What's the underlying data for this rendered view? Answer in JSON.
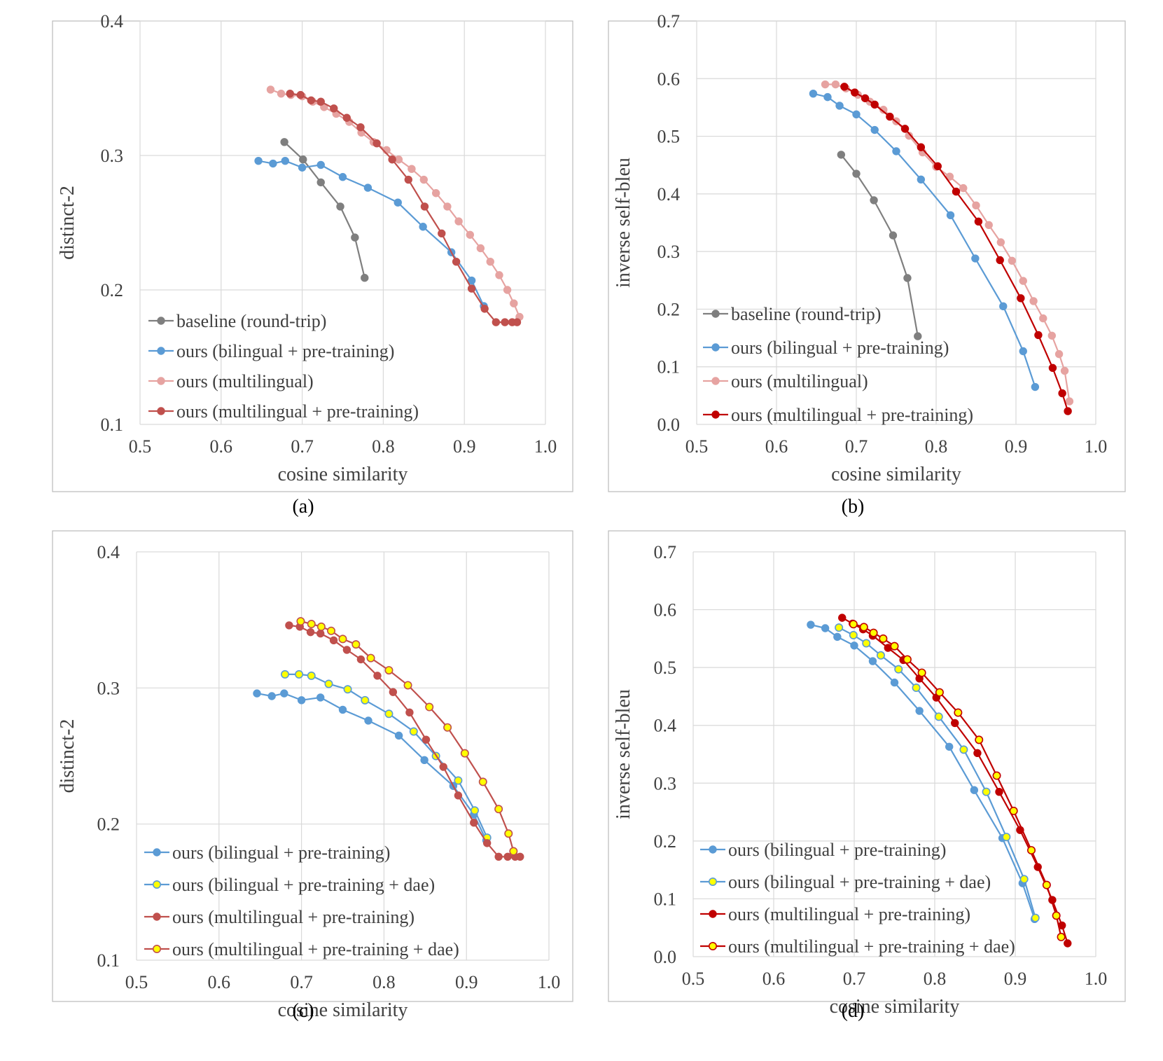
{
  "colors": {
    "baseline": "#7f7f7f",
    "bilingual": "#5b9bd5",
    "multilingual_light": "#e6a3a1",
    "multilingual_pt": "#c0504d",
    "multilingual_pt_dark": "#c00000",
    "marker_yellow": "#ffff00"
  },
  "chart_data": [
    {
      "id": "a",
      "type": "line",
      "caption": "(a)",
      "xlabel": "cosine similarity",
      "ylabel": "distinct-2",
      "xlim": [
        0.5,
        1.0
      ],
      "ylim": [
        0.1,
        0.4
      ],
      "xticks": [
        "0.5",
        "0.6",
        "0.7",
        "0.8",
        "0.9",
        "1.0"
      ],
      "yticks": [
        "0.1",
        "0.2",
        "0.3",
        "0.4"
      ],
      "series": [
        {
          "name": "baseline (round-trip)",
          "color": "#7f7f7f",
          "marker_fill": "#7f7f7f",
          "x": [
            0.678,
            0.701,
            0.723,
            0.747,
            0.765,
            0.777
          ],
          "y": [
            0.31,
            0.297,
            0.28,
            0.262,
            0.239,
            0.209
          ]
        },
        {
          "name": "ours (bilingual + pre-training)",
          "color": "#5b9bd5",
          "marker_fill": "#5b9bd5",
          "x": [
            0.646,
            0.664,
            0.679,
            0.7,
            0.723,
            0.75,
            0.781,
            0.818,
            0.849,
            0.884,
            0.909,
            0.924
          ],
          "y": [
            0.296,
            0.294,
            0.296,
            0.291,
            0.293,
            0.284,
            0.276,
            0.265,
            0.247,
            0.228,
            0.207,
            0.188
          ]
        },
        {
          "name": "ours (multilingual)",
          "color": "#e6a3a1",
          "marker_fill": "#e6a3a1",
          "x": [
            0.661,
            0.674,
            0.686,
            0.7,
            0.713,
            0.727,
            0.742,
            0.758,
            0.773,
            0.788,
            0.804,
            0.819,
            0.835,
            0.85,
            0.865,
            0.879,
            0.893,
            0.907,
            0.92,
            0.932,
            0.943,
            0.953,
            0.961,
            0.968
          ],
          "y": [
            0.349,
            0.346,
            0.345,
            0.344,
            0.34,
            0.336,
            0.331,
            0.325,
            0.317,
            0.31,
            0.304,
            0.297,
            0.29,
            0.282,
            0.272,
            0.262,
            0.251,
            0.241,
            0.231,
            0.221,
            0.211,
            0.2,
            0.19,
            0.18
          ]
        },
        {
          "name": "ours (multilingual + pre-training)",
          "color": "#c0504d",
          "marker_fill": "#c0504d",
          "x": [
            0.685,
            0.698,
            0.711,
            0.723,
            0.739,
            0.755,
            0.772,
            0.792,
            0.811,
            0.831,
            0.851,
            0.872,
            0.89,
            0.909,
            0.925,
            0.939,
            0.95,
            0.959,
            0.965
          ],
          "y": [
            0.346,
            0.345,
            0.341,
            0.34,
            0.335,
            0.328,
            0.321,
            0.309,
            0.297,
            0.282,
            0.262,
            0.242,
            0.221,
            0.201,
            0.186,
            0.176,
            0.176,
            0.176,
            0.176
          ]
        }
      ]
    },
    {
      "id": "b",
      "type": "line",
      "caption": "(b)",
      "xlabel": "cosine similarity",
      "ylabel": "inverse self-bleu",
      "xlim": [
        0.5,
        1.0
      ],
      "ylim": [
        0.0,
        0.7
      ],
      "xticks": [
        "0.5",
        "0.6",
        "0.7",
        "0.8",
        "0.9",
        "1.0"
      ],
      "yticks": [
        "0.0",
        "0.1",
        "0.2",
        "0.3",
        "0.4",
        "0.5",
        "0.6",
        "0.7"
      ],
      "series": [
        {
          "name": "baseline (round-trip)",
          "color": "#7f7f7f",
          "marker_fill": "#7f7f7f",
          "x": [
            0.681,
            0.7,
            0.722,
            0.746,
            0.764,
            0.777
          ],
          "y": [
            0.468,
            0.435,
            0.389,
            0.328,
            0.254,
            0.153
          ]
        },
        {
          "name": "ours (bilingual + pre-training)",
          "color": "#5b9bd5",
          "marker_fill": "#5b9bd5",
          "x": [
            0.646,
            0.664,
            0.679,
            0.7,
            0.723,
            0.75,
            0.781,
            0.818,
            0.849,
            0.884,
            0.909,
            0.924
          ],
          "y": [
            0.574,
            0.568,
            0.553,
            0.538,
            0.511,
            0.474,
            0.425,
            0.363,
            0.288,
            0.205,
            0.127,
            0.065
          ]
        },
        {
          "name": "ours (multilingual)",
          "color": "#e6a3a1",
          "marker_fill": "#e6a3a1",
          "x": [
            0.661,
            0.674,
            0.687,
            0.702,
            0.717,
            0.734,
            0.75,
            0.766,
            0.783,
            0.8,
            0.817,
            0.834,
            0.85,
            0.866,
            0.881,
            0.895,
            0.909,
            0.922,
            0.934,
            0.945,
            0.954,
            0.961,
            0.967
          ],
          "y": [
            0.59,
            0.59,
            0.583,
            0.572,
            0.56,
            0.546,
            0.526,
            0.501,
            0.472,
            0.447,
            0.43,
            0.41,
            0.38,
            0.346,
            0.316,
            0.284,
            0.249,
            0.214,
            0.184,
            0.154,
            0.122,
            0.093,
            0.04
          ]
        },
        {
          "name": "ours (multilingual + pre-training)",
          "color": "#c00000",
          "marker_fill": "#c00000",
          "x": [
            0.685,
            0.698,
            0.711,
            0.723,
            0.742,
            0.761,
            0.781,
            0.802,
            0.825,
            0.853,
            0.88,
            0.906,
            0.928,
            0.946,
            0.958,
            0.965
          ],
          "y": [
            0.586,
            0.576,
            0.566,
            0.555,
            0.534,
            0.513,
            0.481,
            0.448,
            0.404,
            0.352,
            0.285,
            0.219,
            0.155,
            0.098,
            0.054,
            0.023
          ]
        }
      ]
    },
    {
      "id": "c",
      "type": "line",
      "caption": "(c)",
      "xlabel": "cosine similarity",
      "ylabel": "distinct-2",
      "xlim": [
        0.5,
        1.0
      ],
      "ylim": [
        0.1,
        0.4
      ],
      "xticks": [
        "0.5",
        "0.6",
        "0.7",
        "0.8",
        "0.9",
        "1.0"
      ],
      "yticks": [
        "0.1",
        "0.2",
        "0.3",
        "0.4"
      ],
      "series": [
        {
          "name": "ours (bilingual + pre-training)",
          "color": "#5b9bd5",
          "marker_fill": "#5b9bd5",
          "x": [
            0.646,
            0.664,
            0.679,
            0.7,
            0.723,
            0.75,
            0.781,
            0.818,
            0.849,
            0.884,
            0.909,
            0.924
          ],
          "y": [
            0.296,
            0.294,
            0.296,
            0.291,
            0.293,
            0.284,
            0.276,
            0.265,
            0.247,
            0.228,
            0.207,
            0.188
          ]
        },
        {
          "name": "ours (bilingual + pre-training + dae)",
          "color": "#5b9bd5",
          "marker_fill": "#ffff00",
          "x": [
            0.68,
            0.697,
            0.712,
            0.733,
            0.756,
            0.777,
            0.806,
            0.836,
            0.863,
            0.89,
            0.91,
            0.925
          ],
          "y": [
            0.31,
            0.31,
            0.309,
            0.303,
            0.299,
            0.291,
            0.281,
            0.268,
            0.25,
            0.232,
            0.21,
            0.19
          ]
        },
        {
          "name": "ours (multilingual + pre-training)",
          "color": "#c0504d",
          "marker_fill": "#c0504d",
          "x": [
            0.685,
            0.698,
            0.711,
            0.723,
            0.739,
            0.755,
            0.772,
            0.792,
            0.811,
            0.831,
            0.851,
            0.872,
            0.89,
            0.909,
            0.925,
            0.939,
            0.95,
            0.959,
            0.965
          ],
          "y": [
            0.346,
            0.345,
            0.341,
            0.34,
            0.335,
            0.328,
            0.321,
            0.309,
            0.297,
            0.282,
            0.262,
            0.242,
            0.221,
            0.201,
            0.186,
            0.176,
            0.176,
            0.176,
            0.176
          ]
        },
        {
          "name": "ours (multilingual + pre-training + dae)",
          "color": "#c0504d",
          "marker_fill": "#ffff00",
          "x": [
            0.699,
            0.712,
            0.724,
            0.736,
            0.75,
            0.766,
            0.784,
            0.806,
            0.829,
            0.855,
            0.877,
            0.898,
            0.92,
            0.939,
            0.951,
            0.957
          ],
          "y": [
            0.349,
            0.347,
            0.345,
            0.342,
            0.336,
            0.332,
            0.322,
            0.313,
            0.302,
            0.286,
            0.271,
            0.252,
            0.231,
            0.211,
            0.193,
            0.18
          ]
        }
      ]
    },
    {
      "id": "d",
      "type": "line",
      "caption": "(d)",
      "xlabel": "cosine similarity",
      "ylabel": "inverse self-bleu",
      "xlim": [
        0.5,
        1.0
      ],
      "ylim": [
        0.0,
        0.7
      ],
      "xticks": [
        "0.5",
        "0.6",
        "0.7",
        "0.8",
        "0.9",
        "1.0"
      ],
      "yticks": [
        "0.0",
        "0.1",
        "0.2",
        "0.3",
        "0.4",
        "0.5",
        "0.6",
        "0.7"
      ],
      "series": [
        {
          "name": "ours (bilingual + pre-training)",
          "color": "#5b9bd5",
          "marker_fill": "#5b9bd5",
          "x": [
            0.646,
            0.664,
            0.679,
            0.7,
            0.723,
            0.75,
            0.781,
            0.818,
            0.849,
            0.884,
            0.909,
            0.924
          ],
          "y": [
            0.574,
            0.568,
            0.553,
            0.538,
            0.511,
            0.474,
            0.425,
            0.363,
            0.288,
            0.205,
            0.127,
            0.065
          ]
        },
        {
          "name": "ours (bilingual + pre-training + dae)",
          "color": "#5b9bd5",
          "marker_fill": "#ffff00",
          "x": [
            0.681,
            0.699,
            0.715,
            0.733,
            0.755,
            0.777,
            0.805,
            0.836,
            0.864,
            0.889,
            0.911,
            0.925
          ],
          "y": [
            0.569,
            0.556,
            0.542,
            0.521,
            0.497,
            0.465,
            0.415,
            0.358,
            0.285,
            0.207,
            0.134,
            0.067
          ]
        },
        {
          "name": "ours (multilingual + pre-training)",
          "color": "#c00000",
          "marker_fill": "#c00000",
          "x": [
            0.685,
            0.698,
            0.711,
            0.723,
            0.742,
            0.761,
            0.781,
            0.802,
            0.825,
            0.853,
            0.88,
            0.906,
            0.928,
            0.946,
            0.958,
            0.965
          ],
          "y": [
            0.586,
            0.576,
            0.566,
            0.555,
            0.534,
            0.513,
            0.481,
            0.448,
            0.404,
            0.352,
            0.285,
            0.219,
            0.155,
            0.098,
            0.054,
            0.023
          ]
        },
        {
          "name": "ours (multilingual + pre-training + dae)",
          "color": "#c00000",
          "marker_fill": "#ffff00",
          "x": [
            0.699,
            0.712,
            0.724,
            0.736,
            0.75,
            0.766,
            0.784,
            0.806,
            0.829,
            0.855,
            0.877,
            0.898,
            0.92,
            0.939,
            0.951,
            0.957
          ],
          "y": [
            0.575,
            0.57,
            0.56,
            0.55,
            0.537,
            0.514,
            0.491,
            0.457,
            0.422,
            0.375,
            0.313,
            0.252,
            0.184,
            0.124,
            0.071,
            0.034
          ]
        }
      ]
    }
  ]
}
